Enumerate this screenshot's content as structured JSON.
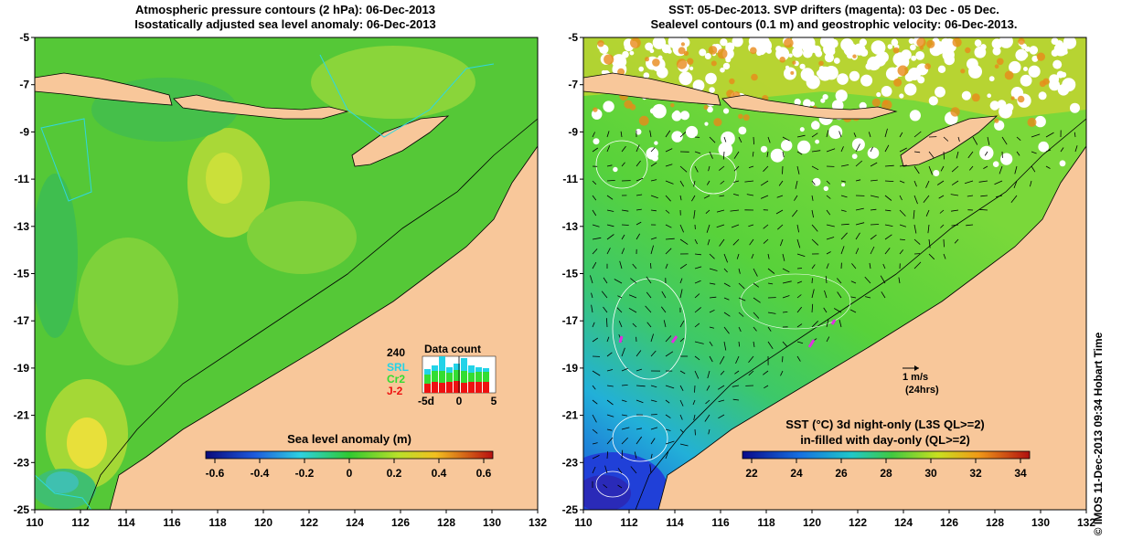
{
  "left_panel": {
    "title_line1": "Atmospheric pressure contours (2 hPa): 06-Dec-2013",
    "title_line2": "Isostatically adjusted sea level anomaly: 06-Dec-2013",
    "legend_title": "Sea level anomaly (m)",
    "legend_ticks": [
      "-0.6",
      "-0.4",
      "-0.2",
      "0",
      "0.2",
      "0.4",
      "0.6"
    ],
    "data_count": {
      "title": "Data count",
      "max_label": "240",
      "series_labels": [
        "SRL",
        "Cr2",
        "J-2"
      ],
      "series_colors": [
        "#22d3e8",
        "#33dd33",
        "#ee1111"
      ],
      "axis_ticks": [
        "-5d",
        "0",
        "5"
      ]
    }
  },
  "right_panel": {
    "title_line1": "SST: 05-Dec-2013. SVP drifters (magenta): 03 Dec - 05 Dec.",
    "title_line2": "Sealevel contours (0.1 m) and geostrophic velocity: 06-Dec-2013.",
    "legend_title_line1": "SST (°C)  3d night-only (L3S QL>=2)",
    "legend_title_line2": "in-filled with day-only (QL>=2)",
    "legend_ticks": [
      "22",
      "24",
      "26",
      "28",
      "30",
      "32",
      "34"
    ],
    "velocity_scale": {
      "label": "1 m/s",
      "sublabel": "(24hrs)"
    }
  },
  "axes": {
    "x_ticks": [
      "110",
      "112",
      "114",
      "116",
      "118",
      "120",
      "122",
      "124",
      "126",
      "128",
      "130",
      "132"
    ],
    "y_ticks": [
      "-5",
      "-7",
      "-9",
      "-11",
      "-13",
      "-15",
      "-17",
      "-19",
      "-21",
      "-23",
      "-25"
    ]
  },
  "credit": "© IMOS 11-Dec-2013 09:34 Hobart Time",
  "colors": {
    "land": "#f8c79a",
    "background": "#ffffff"
  }
}
